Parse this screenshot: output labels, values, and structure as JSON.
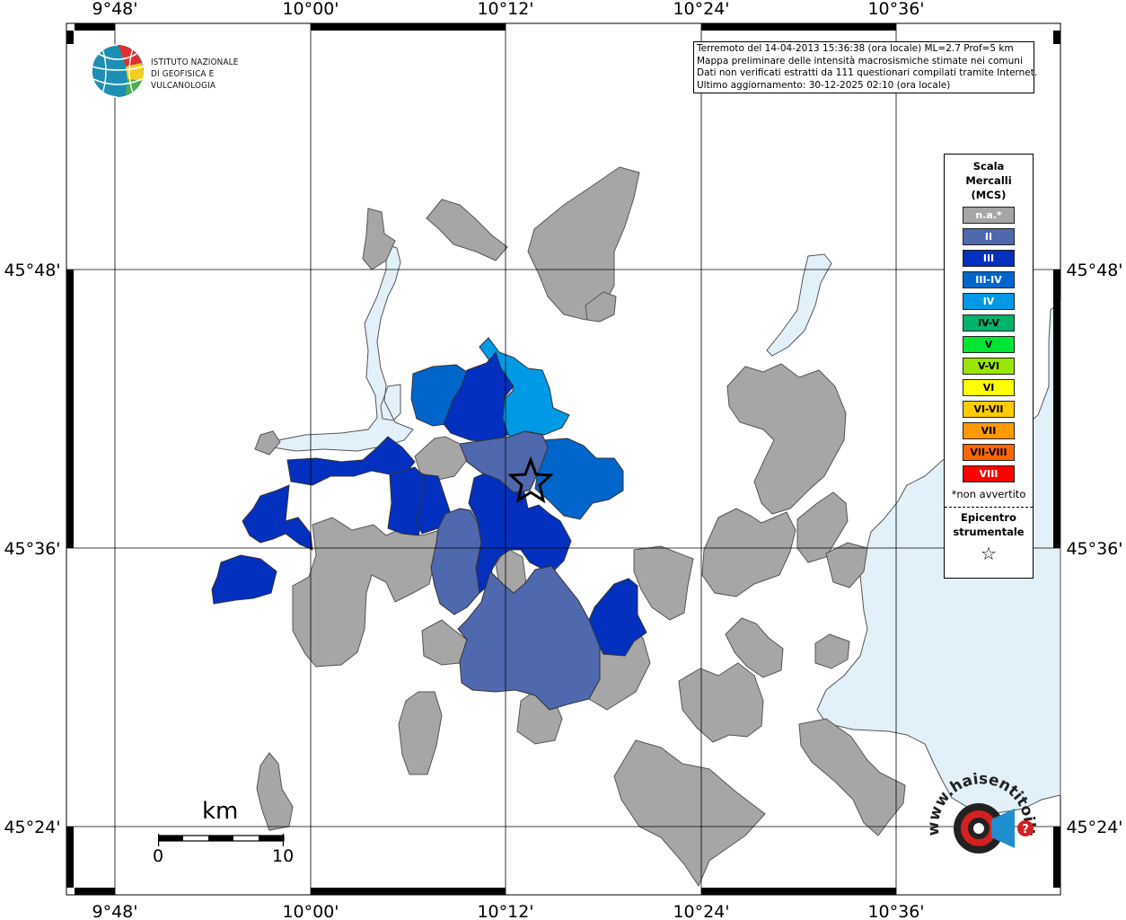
{
  "map": {
    "lon_labels": [
      "9°48'",
      "10°00'",
      "10°12'",
      "10°24'",
      "10°36'"
    ],
    "lat_labels": [
      "45°48'",
      "45°36'",
      "45°24'"
    ],
    "bounds": {
      "lon_min": "9°45'",
      "lon_max": "10°46'",
      "lat_min": "45°21'",
      "lat_max": "45°58'"
    },
    "colors": {
      "not_felt": "#a6a6a6",
      "II": "#4f68ae",
      "III": "#0330bf",
      "III-IV": "#0066cc",
      "IV": "#0099e6",
      "lake": "#e2f0f9",
      "border": "#555555"
    },
    "epicenter": {
      "symbol": "star"
    }
  },
  "institute": {
    "line1": "ISTITUTO NAZIONALE",
    "line2": "DI GEOFISICA E VULCANOLOGIA",
    "icon": "globe-logo-icon"
  },
  "info": {
    "line1": "Terremoto del 14-04-2013 15:36:38 (ora locale) ML=2.7 Prof=5 km",
    "line2": "Mappa preliminare delle intensità macrosismiche stimate nei comuni",
    "line3": "Dati non verificati estratti da 111 questionari compilati tramite Internet.",
    "line4": "Ultimo aggiornamento: 30-12-2025 02:10 (ora locale)"
  },
  "legend": {
    "title": "Scala\nMercalli\n(MCS)",
    "items": [
      {
        "label": "n.a.*",
        "color": "#a6a6a6"
      },
      {
        "label": "II",
        "color": "#4f68ae"
      },
      {
        "label": "III",
        "color": "#0330bf"
      },
      {
        "label": "III-IV",
        "color": "#0066cc"
      },
      {
        "label": "IV",
        "color": "#0099e6"
      },
      {
        "label": "IV-V",
        "color": "#00b36b"
      },
      {
        "label": "V",
        "color": "#00e633"
      },
      {
        "label": "V-VI",
        "color": "#99e600"
      },
      {
        "label": "VI",
        "color": "#ffff00"
      },
      {
        "label": "VI-VII",
        "color": "#ffcc00"
      },
      {
        "label": "VII",
        "color": "#ff9900"
      },
      {
        "label": "VII-VIII",
        "color": "#ff6600"
      },
      {
        "label": "VIII",
        "color": "#ff0000"
      }
    ],
    "note": "*non avvertito",
    "epicenter_label": "Epicentro\nstrumentale",
    "epicenter_icon": "star-outline-icon"
  },
  "scalebar": {
    "unit": "km",
    "start": "0",
    "end": "10"
  },
  "hsi_logo": {
    "text": "www.haisentitoilterremoto.it",
    "icon": "target-megaphone-icon"
  }
}
